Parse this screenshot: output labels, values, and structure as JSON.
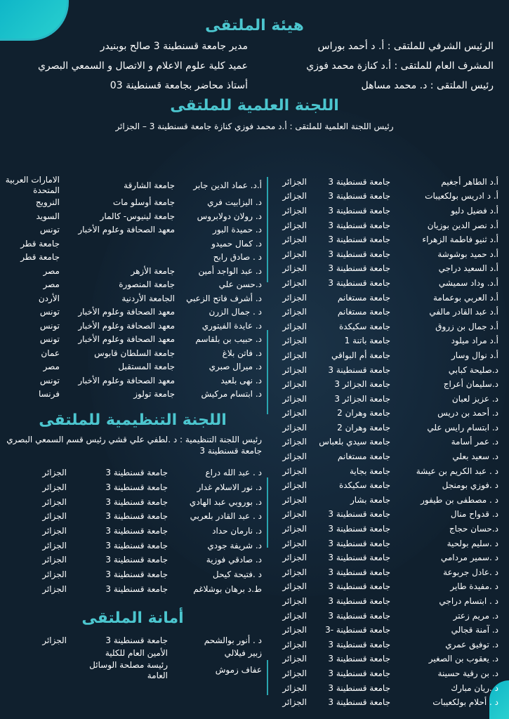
{
  "colors": {
    "background": "#10202e",
    "accent": "#4cc6cf"
  },
  "board": {
    "title": "هيئة الملتقى",
    "lines": [
      {
        "role": "الرئيس الشرفي للملتقى : أ. د أحمد بوراس",
        "desc": "مدير جامعة قسنطينة 3 صالح بوبنيدر"
      },
      {
        "role": "المشرف العام للملتقى : أ.د كنازة محمد فوزي",
        "desc": "عميد كلية علوم الاعلام و الاتصال و السمعي البصري"
      },
      {
        "role": "رئيس الملتقى : د. محمد مساهل",
        "desc": "أستاذ محاضر بجامعة قسنطينة 03"
      }
    ]
  },
  "scientific": {
    "title": "اللجنة العلمية للملتقى",
    "president": "رئيس اللجنة العلمية للملتقى : أ.د محمد فوزي كنازة    جامعة قسنطينة 3 – الجزائر",
    "right_rows": [
      [
        "أ.د الطاهر أجغيم",
        "جامعة قسنطينة 3",
        "الجزائر"
      ],
      [
        "أ. د ادريس بولكعيبات",
        "جامعة قسنطينة 3",
        "الجزائر"
      ],
      [
        "أ.د فضيل دليو",
        "جامعة قسنطينة 3",
        "الجزائر"
      ],
      [
        "أ.د نصر الدين بوزيان",
        "جامعة قسنطينة 3",
        "الجزائر"
      ],
      [
        "أ.د ثنيو فاطمة الزهراء",
        "جامعة قسنطينة 3",
        "الجزائر"
      ],
      [
        "أ.د  حميد بوشوشة",
        "جامعة قسنطينة 3",
        "الجزائر"
      ],
      [
        "أ.د السعيد دراجي",
        "جامعة قسنطينة 3",
        "الجزائر"
      ],
      [
        "أ.د. وداد سميشي",
        "جامعة قسنطينة 3",
        "الجزائر"
      ],
      [
        "أ.د العربي بوعمامة",
        "جامعة مستغانم",
        "الجزائر"
      ],
      [
        "أ.د عبد القادر مالفي",
        "جامعة مستغانم",
        "الجزائر"
      ],
      [
        "أ.د جمال بن زروق",
        "جامعة سكيكدة",
        "الجزائر"
      ],
      [
        "أ.د مراد ميلود",
        "جامعة باتنة 1",
        "الجزائر"
      ],
      [
        "أ.د نوال وسار",
        "جامعة أم البواقي",
        "الجزائر"
      ],
      [
        "د.صليحة كبابي",
        "جامعة قسنطينة 3",
        "الجزائر"
      ],
      [
        "د.سليمان أعراج",
        "جامعة الجزائر 3",
        "الجزائر"
      ],
      [
        "د. عزيز لعبان",
        "جامعة الجزائر 3",
        "الجزائر"
      ],
      [
        "د. أحمد بن دريس",
        "جامعة وهران 2",
        "الجزائر"
      ],
      [
        "د. ابتسام رايس علي",
        "جامعة وهران 2",
        "الجزائر"
      ],
      [
        "د. عمر أسامة",
        "جامعة سيدي بلعباس",
        "الجزائر"
      ],
      [
        "د. سعيد بعلي",
        "جامعة مستغانم",
        "الجزائر"
      ],
      [
        "د . عبد الكريم بن عيشة",
        "جامعة بجاية",
        "الجزائر"
      ],
      [
        "د .فوزي بومنجل",
        "جامعة سكيكدة",
        "الجزائر"
      ],
      [
        "د . مصطفى بن طيفور",
        "جامعة بشار",
        "الجزائر"
      ],
      [
        "د. قدواح منال",
        "جامعة قسنطينة 3",
        "الجزائر"
      ],
      [
        "د.حسان حجاج",
        "جامعة قسنطينة 3",
        "الجزائر"
      ],
      [
        "د .سليم بولحية",
        "جامعة قسنطينة 3",
        "الجزائر"
      ],
      [
        "د .سمير مردامي",
        "جامعة قسنطينة 3",
        "الجزائر"
      ],
      [
        "د .عادل جربوعة",
        "جامعة قسنطينة 3",
        "الجزائر"
      ],
      [
        "د .مفيدة طاير",
        "جامعة قسنطينة 3",
        "الجزائر"
      ],
      [
        "د . ابتسام دراجي",
        "جامعة قسنطينة 3",
        "الجزائر"
      ],
      [
        "د. مريم زعتر",
        "جامعة قسنطينة 3",
        "الجزائر"
      ],
      [
        "د. آمنة قجالي",
        "جامعة قسنطينة -3",
        "الجزائر"
      ],
      [
        "د. توفيق عمري",
        "جامعة قسنطينة 3",
        "الجزائر"
      ],
      [
        "د. يعقوب بن الصغير",
        "جامعة قسنطينة 3",
        "الجزائر"
      ],
      [
        "د. بن رقية حسينة",
        "جامعة قسنطينة 3",
        "الجزائر"
      ],
      [
        "د .ريان مبارك",
        "جامعة قسنطينة 3",
        "الجزائر"
      ],
      [
        "د . أحلام بولكعيبات",
        "جامعة قسنطينة 3",
        "الجزائر"
      ]
    ],
    "left_rows": [
      [
        "أ.د. عماد الدين جابر",
        "جامعة الشارقة",
        "الامارات العربية المتحدة"
      ],
      [
        "د. اليزابيت فري",
        "جامعة أوسلو مات",
        "النرويج"
      ],
      [
        "د. رولان دولابروس",
        "جامعة لينيوس- كالمار",
        "السويد"
      ],
      [
        "د. حميدة البور",
        "معهد الصحافة وعلوم الأخبار",
        "تونس"
      ],
      [
        "د. كمال حميدو",
        "",
        "جامعة قطر"
      ],
      [
        "د . صادق رابح",
        "",
        "جامعة قطر"
      ],
      [
        "د. عبد الواجد أمين",
        "جامعة الأزهر",
        "مصر"
      ],
      [
        "د.حسن علي",
        "جامعة المنصورة",
        "مصر"
      ],
      [
        "د. أشرف فاتح الزعبي",
        "الجامعة الأردنية",
        "الأردن"
      ],
      [
        "د . جمال الزرن",
        "معهد الصحافة وعلوم الأخبار",
        "تونس"
      ],
      [
        "د. عايدة الفيتوري",
        "معهد الصحافة وعلوم الأخبار",
        "تونس"
      ],
      [
        "د. حبيب بن بلقاسم",
        "معهد الصحافة وعلوم الأخبار",
        "تونس"
      ],
      [
        "د. فاتن بلاغ",
        "جامعة السلطان قابوس",
        "عمان"
      ],
      [
        "د. ميرال صبري",
        "جامعة  المستقبل",
        "مصر"
      ],
      [
        "د. نهى بلعيد",
        "معهد الصحافة وعلوم الأخبار",
        "تونس"
      ],
      [
        "د. ابتسام مركيش",
        "جامعة تولوز",
        "فرنسا"
      ]
    ]
  },
  "organizing": {
    "title": "اللجنة التنظيمية للملتقى",
    "president": "رئيس اللجنة التنظيمية : د .لطفي علي قشي   رئيس قسم السمعي البصري   جامعة قسنطينة 3",
    "rows": [
      [
        "د . عبد الله دراع",
        "جامعة قسنطينة 3",
        "الجزائر"
      ],
      [
        "د. نور الاسلام غدار",
        "جامعة قسنطينة 3",
        "الجزائر"
      ],
      [
        "د. بوروبي عبد الهادي",
        "جامعة قسنطينة 3",
        "الجزائر"
      ],
      [
        "د . عبد القادر بلعربي",
        "جامعة قسنطينة 3",
        "الجزائر"
      ],
      [
        "د.  نارمان حداد",
        "جامعة قسنطينة 3",
        "الجزائر"
      ],
      [
        "د. شريفة جودي",
        "جامعة قسنطينة 3",
        "الجزائر"
      ],
      [
        "د. صادقي فوزية",
        "جامعة قسنطينة 3",
        "الجزائر"
      ],
      [
        "د .فتيحة كيحل",
        "جامعة قسنطينة 3",
        "الجزائر"
      ],
      [
        "ط.د برهان بوشلاغم",
        "جامعة قسنطينة 3",
        "الجزائر"
      ]
    ]
  },
  "secretariat": {
    "title": "أمانة الملتقى",
    "rows": [
      [
        "د . أنور  بوالشحم",
        "جامعة قسنطينة 3",
        "الجزائر"
      ],
      [
        "زبير فيلالي",
        "الأمين العام للكلية",
        ""
      ],
      [
        "عفاف زموش",
        "رئيسة مصلحة الوسائل العامة",
        ""
      ]
    ]
  }
}
